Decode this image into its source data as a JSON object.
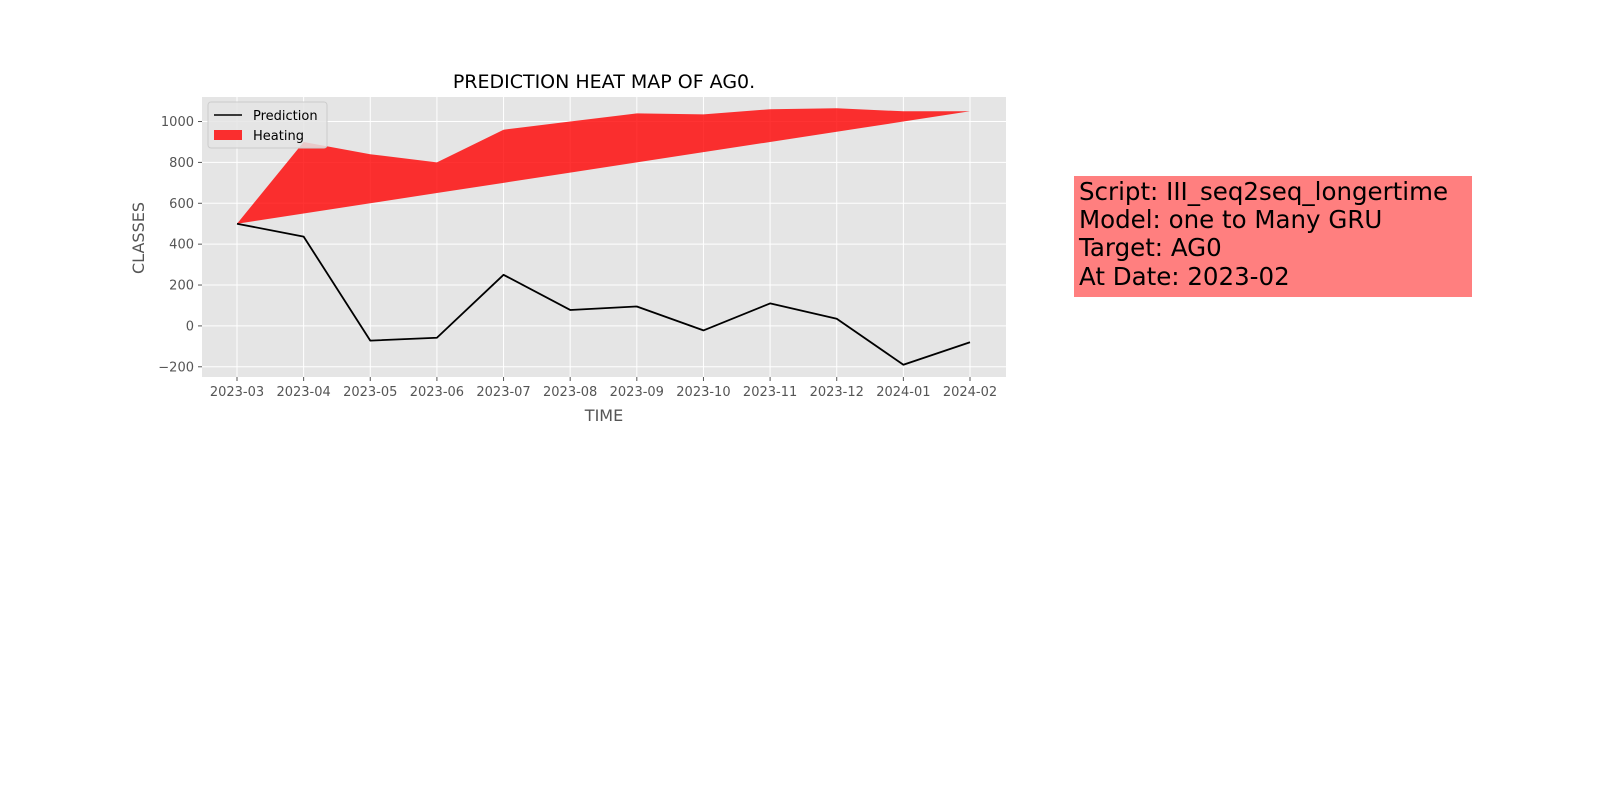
{
  "chart_data": {
    "type": "line",
    "title": "PREDICTION HEAT MAP OF AG0.",
    "xlabel": "TIME",
    "ylabel": "CLASSES",
    "categories": [
      "2023-03",
      "2023-04",
      "2023-05",
      "2023-06",
      "2023-07",
      "2023-08",
      "2023-09",
      "2023-10",
      "2023-11",
      "2023-12",
      "2024-01",
      "2024-02"
    ],
    "ylim": [
      -250,
      1120
    ],
    "yticks": [
      -200,
      0,
      200,
      400,
      600,
      800,
      1000
    ],
    "ytick_labels": [
      "−200",
      "0",
      "200",
      "400",
      "600",
      "800",
      "1000"
    ],
    "grid": true,
    "legend": "top-left",
    "series": [
      {
        "name": "Prediction",
        "kind": "line",
        "color": "#000000",
        "values": [
          500,
          437,
          -72,
          -58,
          250,
          78,
          95,
          -22,
          110,
          35,
          -190,
          -80
        ]
      },
      {
        "name": "Heating",
        "kind": "fill_between",
        "color": "#ff0000",
        "upper": [
          500,
          900,
          840,
          800,
          960,
          1000,
          1040,
          1035,
          1060,
          1065,
          1050,
          1050
        ],
        "lower": [
          500,
          550,
          600,
          650,
          700,
          750,
          800,
          850,
          900,
          950,
          1000,
          1050
        ]
      }
    ]
  },
  "info_box": {
    "lines": [
      "Script: III_seq2seq_longertime",
      "Model: one to Many GRU",
      "Target: AG0",
      "At Date: 2023-02"
    ],
    "background": "#ff7f7f"
  }
}
